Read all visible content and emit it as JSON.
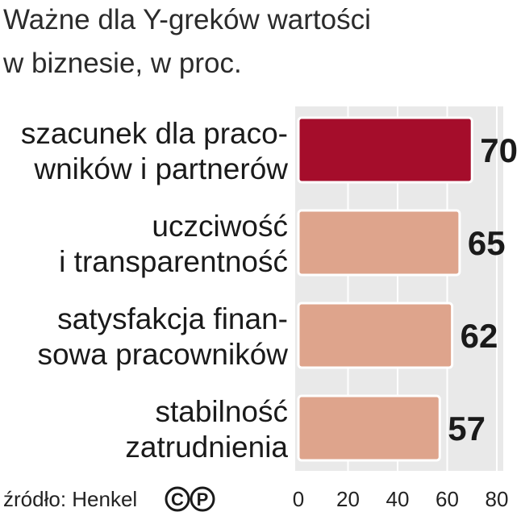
{
  "chart_data": {
    "type": "bar",
    "orientation": "horizontal",
    "title_lines": [
      "Ważne dla Y-greków wartości",
      "w biznesie, w proc."
    ],
    "categories": [
      [
        "szacunek dla praco-",
        "wników i partnerów"
      ],
      [
        "uczciwość",
        "i transparentność"
      ],
      [
        "satysfakcja finan-",
        "sowa pracowników"
      ],
      [
        "stabilność",
        "zatrudnienia"
      ]
    ],
    "values": [
      70,
      65,
      62,
      57
    ],
    "value_labels": [
      "70",
      "65",
      "62",
      "57"
    ],
    "xlim": [
      0,
      80
    ],
    "ticks": [
      "0",
      "20",
      "40",
      "60",
      "80"
    ],
    "grid": true,
    "bar_colors": [
      "#a50d2b",
      "#dea48c",
      "#dea48c",
      "#dea48c"
    ],
    "source": "źródło: Henkel",
    "logo_marks": [
      "C",
      "P"
    ]
  },
  "colors": {
    "panel": "#e9e9e9",
    "grid": "#ffffff",
    "highlight": "#a50d2b",
    "bar": "#dea48c",
    "bar_stroke": "#ffffff"
  }
}
